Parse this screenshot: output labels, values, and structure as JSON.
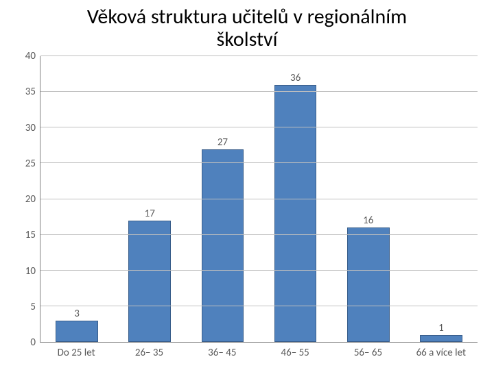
{
  "title_line1": "Věková struktura učitelů v regionálním",
  "title_line2": "školství",
  "title_fontsize": 30,
  "chart": {
    "type": "bar",
    "categories": [
      "Do 25 let",
      "26– 35",
      "36– 45",
      "46– 55",
      "56– 65",
      "66 a více let"
    ],
    "values": [
      3,
      17,
      27,
      36,
      16,
      1
    ],
    "bar_color": "#4f81bd",
    "bar_border_color": "#385d8a",
    "bar_width_pct": 58,
    "ylim": [
      0,
      40
    ],
    "ytick_step": 5,
    "yticks": [
      0,
      5,
      10,
      15,
      20,
      25,
      30,
      35,
      40
    ],
    "grid_color": "#bfbfbf",
    "axis_label_color": "#595959",
    "axis_fontsize": 15,
    "datalabel_fontsize": 15,
    "background_color": "#ffffff"
  }
}
